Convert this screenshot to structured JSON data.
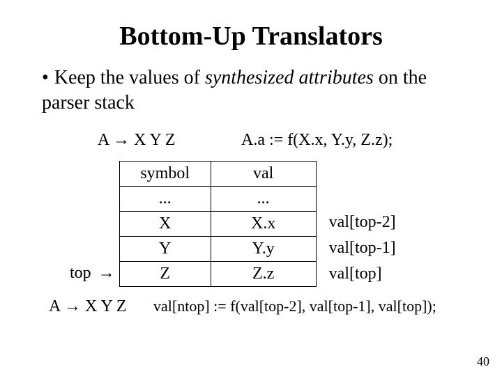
{
  "title": "Bottom-Up Translators",
  "bullet_prefix": "•",
  "bullet_text_a": "Keep the values of ",
  "bullet_text_italic": "synthesized attributes",
  "bullet_text_b": " on the parser stack",
  "rule": {
    "lhs": "A",
    "arrow": "→",
    "rhs": "X Y Z",
    "action": "A.a := f(X.x, Y.y, Z.z);"
  },
  "table": {
    "headers": {
      "symbol": "symbol",
      "val": "val"
    },
    "rows": [
      {
        "sym": "...",
        "val": "...",
        "annot": ""
      },
      {
        "sym": "X",
        "val": "X.x",
        "annot": "val[top-2]"
      },
      {
        "sym": "Y",
        "val": "Y.y",
        "annot": "val[top-1]"
      },
      {
        "sym": "Z",
        "val": "Z.z",
        "annot": "val[top]"
      }
    ]
  },
  "top_label": "top",
  "top_arrow": "→",
  "bottom": {
    "lhs": "A",
    "arrow": "→",
    "rhs": "X Y Z",
    "code": "val[ntop] := f(val[top-2], val[top-1], val[top]);"
  },
  "page_number": "40",
  "colors": {
    "text": "#000000",
    "background": "#ffffff",
    "border": "#000000"
  }
}
